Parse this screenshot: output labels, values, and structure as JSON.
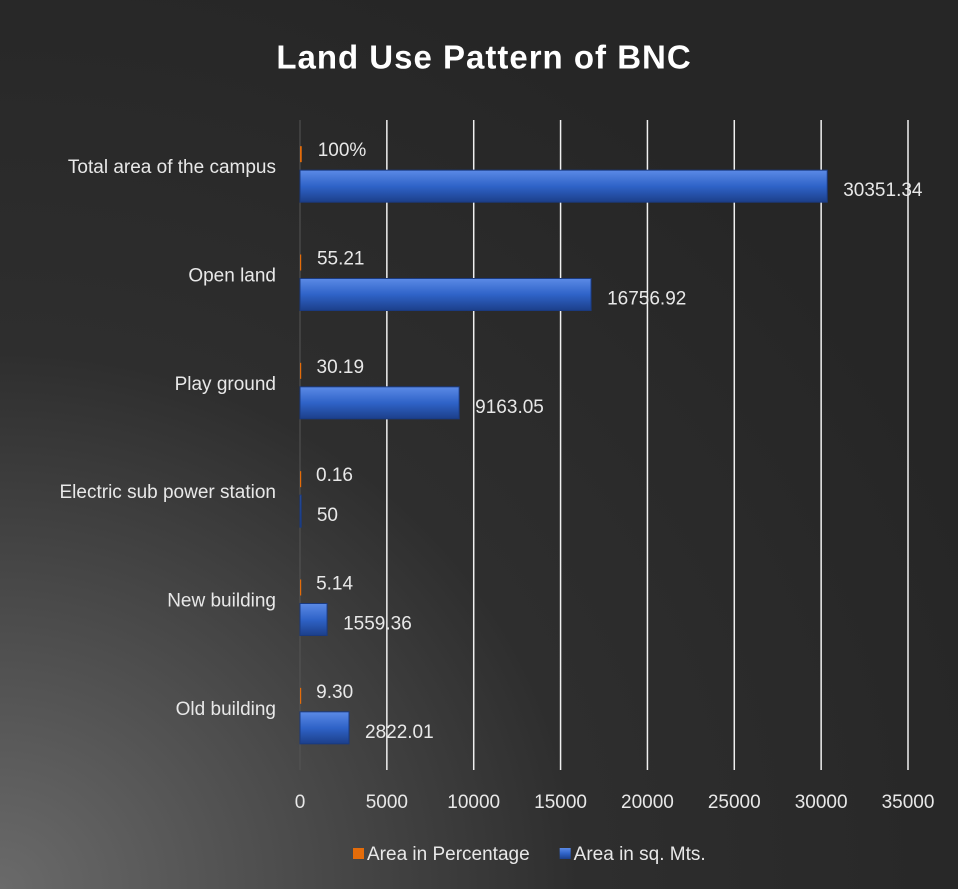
{
  "chart_data": {
    "type": "bar",
    "orientation": "horizontal",
    "title": "Land Use Pattern of BNC",
    "categories": [
      "Total area of the campus",
      "Open land",
      "Play ground",
      "Electric sub power station",
      "New building",
      "Old building"
    ],
    "series": [
      {
        "name": "Area in Percentage",
        "color": "#e46c0a",
        "values": [
          100,
          55.21,
          30.19,
          0.16,
          5.14,
          9.3
        ],
        "value_labels": [
          "100%",
          "55.21",
          "30.19",
          "0.16",
          "5.14",
          "9.30"
        ]
      },
      {
        "name": "Area in sq. Mts.",
        "color": "#2f63c8",
        "values": [
          30351.34,
          16756.92,
          9163.05,
          50,
          1559.36,
          2822.01
        ]
      }
    ],
    "xlim": [
      0,
      35000
    ],
    "xticks": [
      0,
      5000,
      10000,
      15000,
      20000,
      25000,
      30000,
      35000
    ],
    "grid": true,
    "legend": "bottom"
  }
}
